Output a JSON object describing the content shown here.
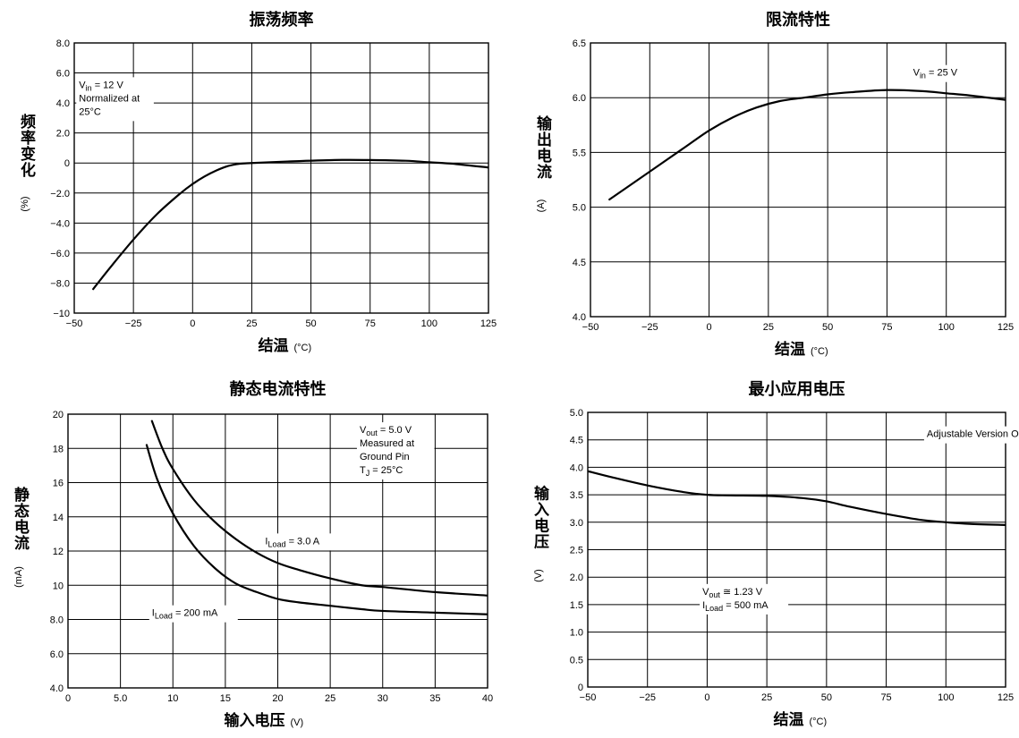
{
  "chart_data": [
    {
      "type": "line",
      "title": "振荡频率",
      "xlabel": "结温",
      "xunit": "(°C)",
      "ylabel": "频率变化",
      "yunit": "(%)",
      "xlim": [
        -50,
        125
      ],
      "ylim": [
        -10,
        8
      ],
      "xticks": [
        -50,
        -25,
        0,
        25,
        50,
        75,
        100,
        125
      ],
      "xtick_labels": [
        "−50",
        "−25",
        "0",
        "25",
        "50",
        "75",
        "100",
        "125"
      ],
      "yticks": [
        -10,
        -8,
        -6,
        -4,
        -2,
        0,
        2,
        4,
        6,
        8
      ],
      "ytick_labels": [
        "−10",
        "−8.0",
        "−6.0",
        "−4.0",
        "−2.0",
        "0",
        "2.0",
        "4.0",
        "6.0",
        "8.0"
      ],
      "grid": true,
      "series": [
        {
          "x": [
            -42,
            -35,
            -25,
            -15,
            -5,
            0,
            5,
            10,
            15,
            20,
            25,
            40,
            60,
            75,
            90,
            100,
            110,
            125
          ],
          "y": [
            -8.4,
            -7.0,
            -5.1,
            -3.4,
            -2.0,
            -1.4,
            -0.9,
            -0.5,
            -0.2,
            -0.05,
            0,
            0.1,
            0.2,
            0.2,
            0.15,
            0.05,
            -0.05,
            -0.3
          ]
        }
      ],
      "annotations": [
        {
          "lines": [
            "V_in = 12 V",
            "Normalized at",
            "25°C"
          ],
          "at": [
            -48,
            5.0
          ]
        }
      ]
    },
    {
      "type": "line",
      "title": "限流特性",
      "xlabel": "结温",
      "xunit": "(°C)",
      "ylabel": "输出电流",
      "yunit": "(A)",
      "xlim": [
        -50,
        125
      ],
      "ylim": [
        4.0,
        6.5
      ],
      "xticks": [
        -50,
        -25,
        0,
        25,
        50,
        75,
        100,
        125
      ],
      "xtick_labels": [
        "−50",
        "−25",
        "0",
        "25",
        "50",
        "75",
        "100",
        "125"
      ],
      "yticks": [
        4.0,
        4.5,
        5.0,
        5.5,
        6.0,
        6.5
      ],
      "ytick_labels": [
        "4.0",
        "4.5",
        "5.0",
        "5.5",
        "6.0",
        "6.5"
      ],
      "grid": true,
      "series": [
        {
          "x": [
            -42,
            -30,
            -20,
            -10,
            0,
            10,
            20,
            30,
            40,
            50,
            60,
            75,
            90,
            100,
            110,
            125
          ],
          "y": [
            5.07,
            5.25,
            5.4,
            5.55,
            5.7,
            5.82,
            5.91,
            5.97,
            6.0,
            6.03,
            6.05,
            6.07,
            6.06,
            6.04,
            6.02,
            5.98
          ]
        }
      ],
      "annotations": [
        {
          "lines": [
            "V_in = 25 V"
          ],
          "at": [
            86,
            6.2
          ]
        }
      ]
    },
    {
      "type": "line",
      "title": "静态电流特性",
      "xlabel": "输入电压",
      "xunit": "(V)",
      "ylabel": "静态电流",
      "yunit": "(mA)",
      "xlim": [
        0,
        40
      ],
      "ylim": [
        4.0,
        20
      ],
      "xticks": [
        0,
        5,
        10,
        15,
        20,
        25,
        30,
        35,
        40
      ],
      "xtick_labels": [
        "0",
        "5.0",
        "10",
        "15",
        "20",
        "25",
        "30",
        "35",
        "40"
      ],
      "yticks": [
        4,
        6,
        8,
        10,
        12,
        14,
        16,
        18,
        20
      ],
      "ytick_labels": [
        "4.0",
        "6.0",
        "8.0",
        "10",
        "12",
        "14",
        "16",
        "18",
        "20"
      ],
      "grid": true,
      "series": [
        {
          "name": "I_Load = 3.0 A",
          "x": [
            8,
            9,
            10,
            12,
            14,
            16,
            18,
            20,
            22,
            25,
            28,
            30,
            35,
            40
          ],
          "y": [
            19.6,
            18.0,
            16.8,
            15.0,
            13.7,
            12.7,
            11.9,
            11.3,
            10.9,
            10.4,
            10.0,
            9.9,
            9.6,
            9.4
          ]
        },
        {
          "name": "I_Load = 200 mA",
          "x": [
            7.5,
            8.5,
            10,
            12,
            14,
            16,
            18,
            20,
            22,
            25,
            28,
            30,
            35,
            40
          ],
          "y": [
            18.2,
            16.2,
            14.2,
            12.3,
            11.0,
            10.1,
            9.6,
            9.2,
            9.0,
            8.8,
            8.6,
            8.5,
            8.4,
            8.3
          ]
        }
      ],
      "annotations": [
        {
          "lines": [
            "V_out = 5.0 V",
            "Measured at",
            "Ground Pin",
            "T_J = 25°C"
          ],
          "at": [
            27.8,
            18.9
          ]
        },
        {
          "lines": [
            "I_Load = 3.0 A"
          ],
          "at": [
            18.8,
            12.4
          ]
        },
        {
          "lines": [
            "I_Load = 200 mA"
          ],
          "at": [
            8.0,
            8.2
          ]
        }
      ]
    },
    {
      "type": "line",
      "title": "最小应用电压",
      "xlabel": "结温",
      "xunit": "(°C)",
      "ylabel": "输入电压",
      "yunit": "(V)",
      "xlim": [
        -50,
        125
      ],
      "ylim": [
        0,
        5.0
      ],
      "xticks": [
        -50,
        -25,
        0,
        25,
        50,
        75,
        100,
        125
      ],
      "xtick_labels": [
        "−50",
        "−25",
        "0",
        "25",
        "50",
        "75",
        "100",
        "125"
      ],
      "yticks": [
        0,
        0.5,
        1.0,
        1.5,
        2.0,
        2.5,
        3.0,
        3.5,
        4.0,
        4.5,
        5.0
      ],
      "ytick_labels": [
        "0",
        "0.5",
        "1.0",
        "1.5",
        "2.0",
        "2.5",
        "3.0",
        "3.5",
        "4.0",
        "4.5",
        "5.0"
      ],
      "grid": true,
      "series": [
        {
          "x": [
            -50,
            -40,
            -25,
            -10,
            0,
            10,
            25,
            40,
            50,
            60,
            75,
            90,
            100,
            110,
            125
          ],
          "y": [
            3.93,
            3.82,
            3.67,
            3.55,
            3.5,
            3.49,
            3.48,
            3.44,
            3.38,
            3.28,
            3.15,
            3.04,
            3.0,
            2.97,
            2.95
          ]
        }
      ],
      "annotations": [
        {
          "lines": [
            "Adjustable Version Only"
          ],
          "at": [
            92,
            4.55
          ]
        },
        {
          "lines": [
            "V_out ≅ 1.23 V",
            "I_Load = 500 mA"
          ],
          "at": [
            -2,
            1.68
          ]
        }
      ]
    }
  ]
}
